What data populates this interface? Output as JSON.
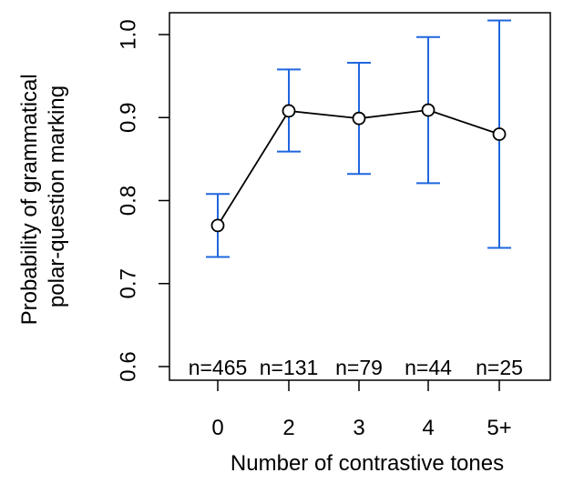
{
  "chart_data": {
    "type": "line",
    "categories": [
      "0",
      "2",
      "3",
      "4",
      "5+"
    ],
    "values": [
      0.77,
      0.908,
      0.899,
      0.909,
      0.88
    ],
    "error_low": [
      0.732,
      0.859,
      0.832,
      0.821,
      0.743
    ],
    "error_high": [
      0.808,
      0.958,
      0.966,
      0.997,
      1.017
    ],
    "sample_labels": [
      "n=465",
      "n=131",
      "n=79",
      "n=44",
      "n=25"
    ],
    "xlabel": "Number of contrastive tones",
    "ylabel_lines": [
      "Probability of grammatical",
      "polar-question marking"
    ],
    "yticks": [
      0.6,
      0.7,
      0.8,
      0.9,
      1.0
    ],
    "ytick_labels": [
      "0.6",
      "0.7",
      "0.8",
      "0.9",
      "1.0"
    ],
    "ylim": [
      0.59,
      1.03
    ],
    "grid": false,
    "colors": {
      "line": "#000000",
      "error_bars": "#1f66dd",
      "marker_fill": "#ffffff"
    }
  }
}
